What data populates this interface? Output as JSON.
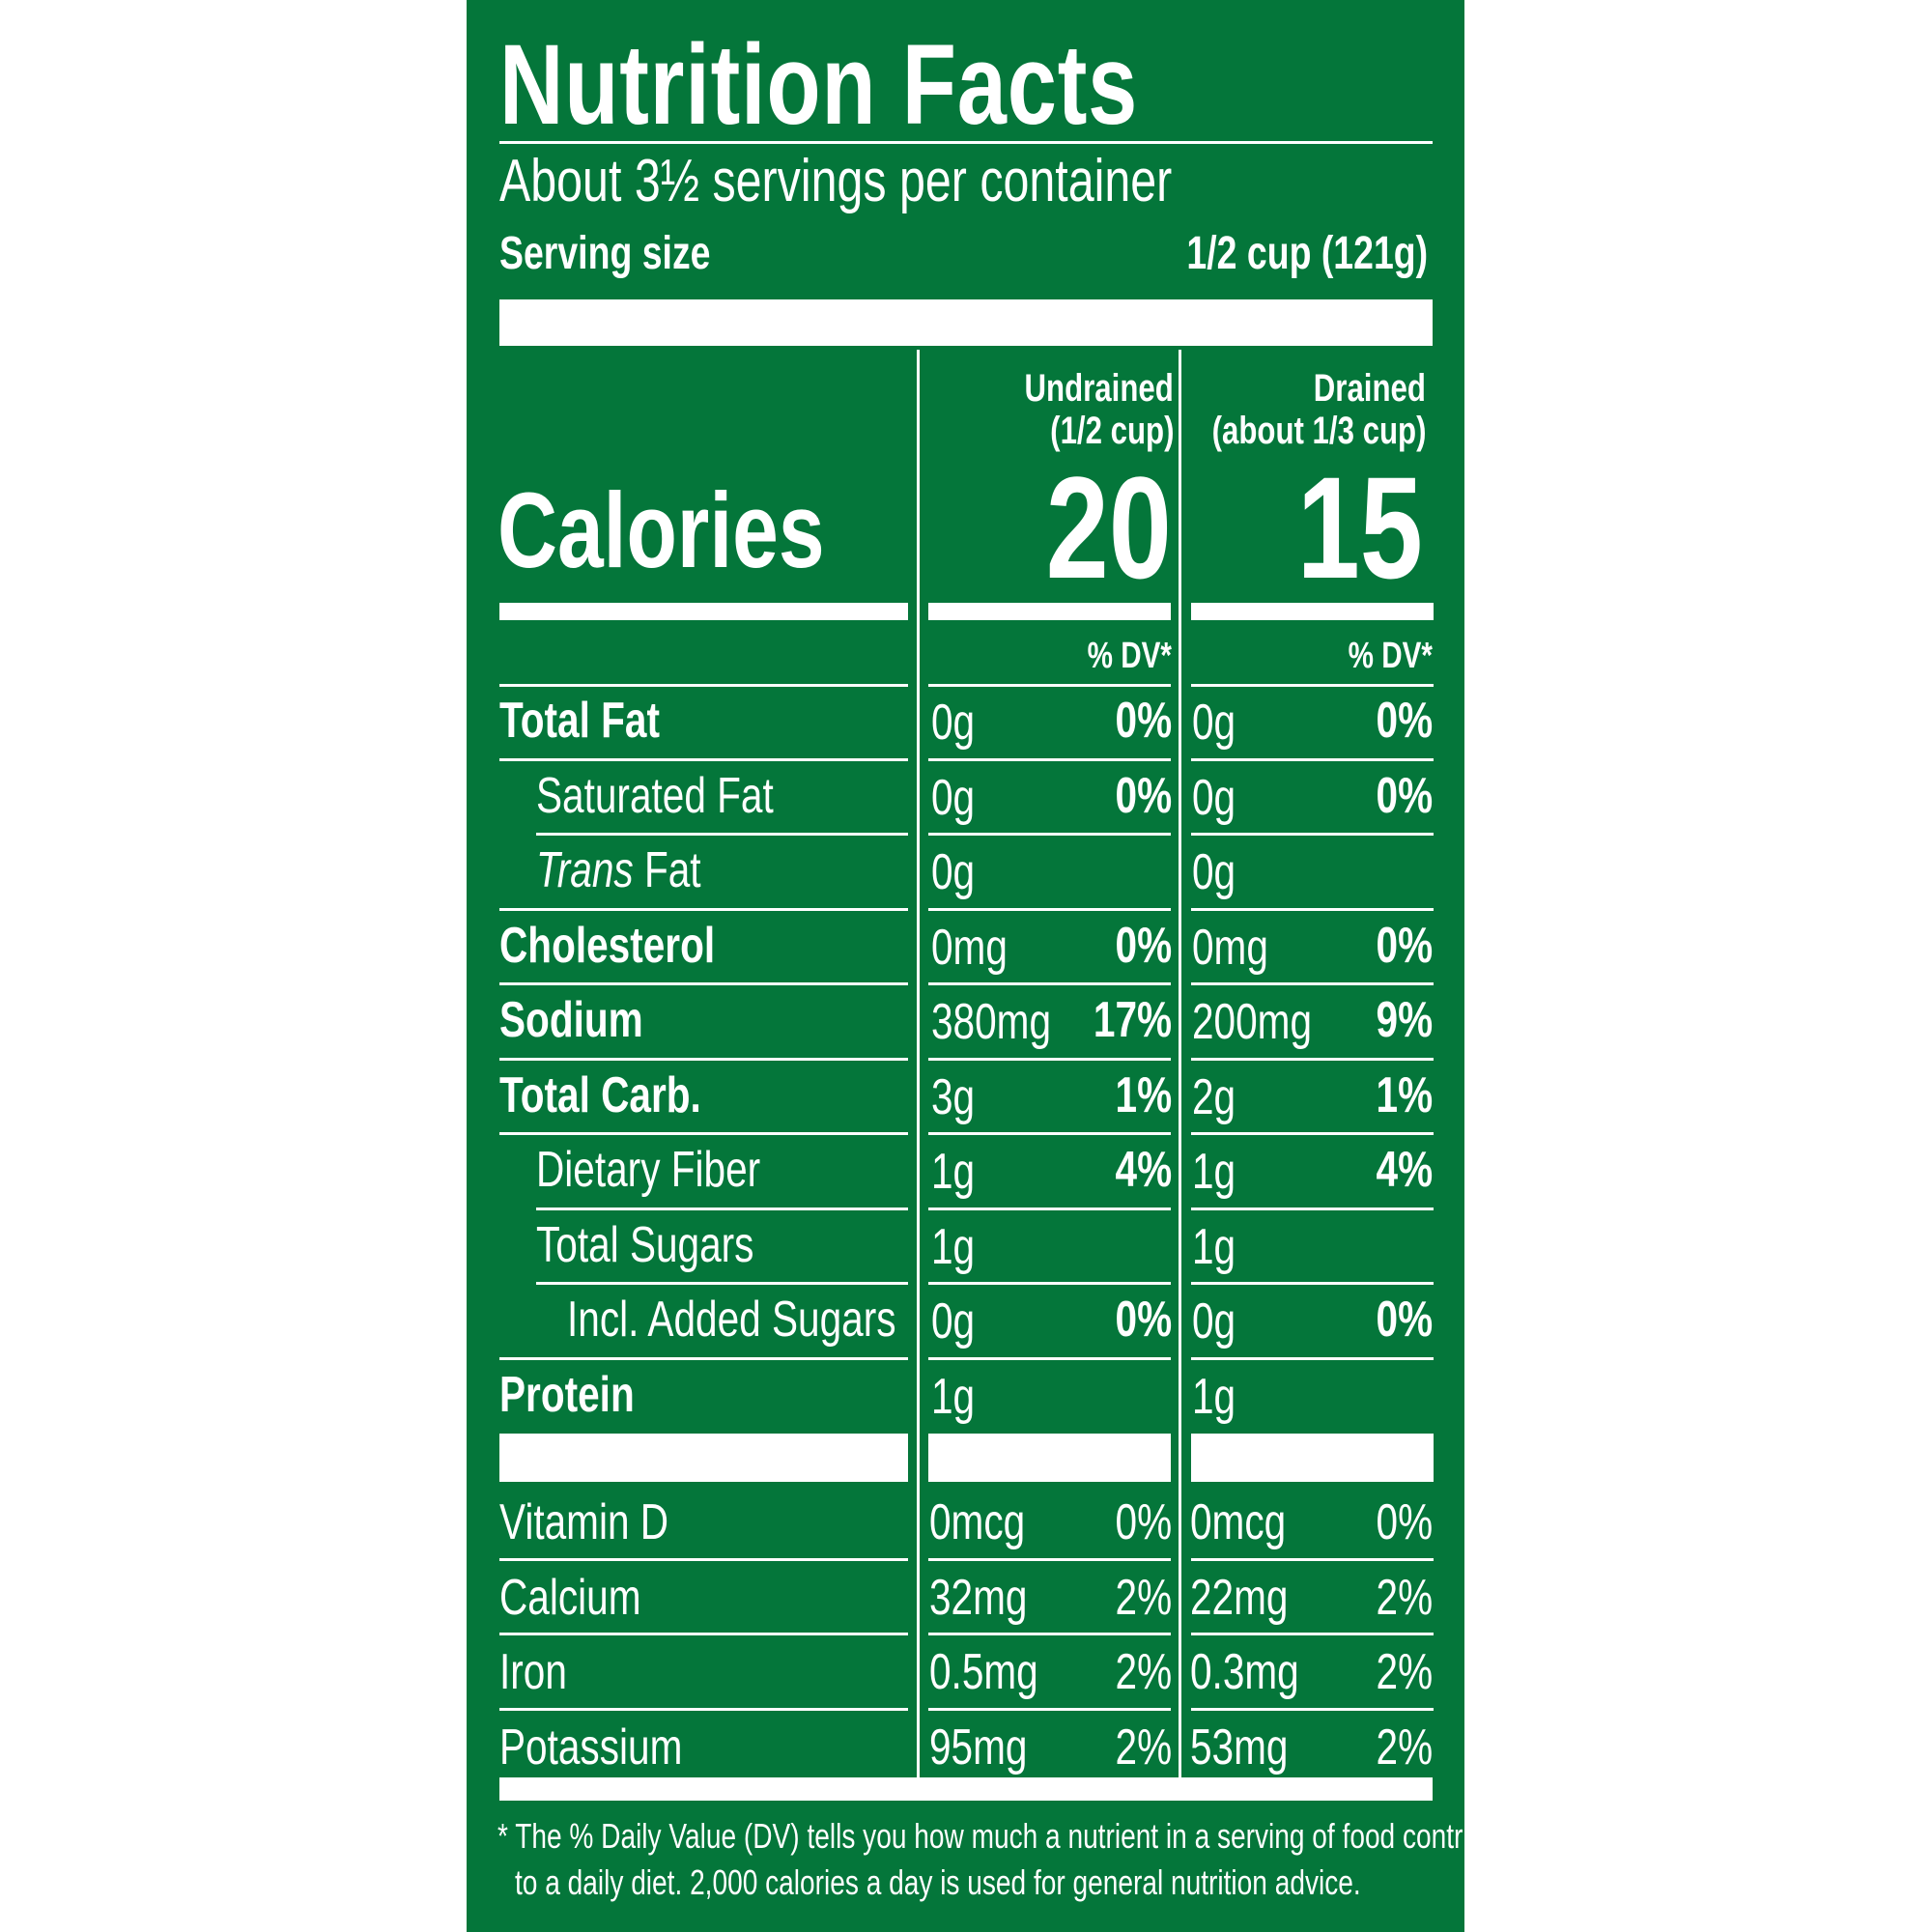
{
  "title": "Nutrition Facts",
  "servings_per_container": "About 3½ servings per container",
  "serving_size": {
    "label": "Serving size",
    "value": "1/2 cup (121g)"
  },
  "columns": [
    {
      "line1": "Undrained",
      "line2": "(1/2 cup)",
      "calories": "20",
      "dv_header": "% DV*"
    },
    {
      "line1": "Drained",
      "line2": "(about 1/3 cup)",
      "calories": "15",
      "dv_header": "% DV*"
    }
  ],
  "calories_label": "Calories",
  "nutrients": [
    {
      "label": "Total Fat",
      "bold": true,
      "indent": 0,
      "undrained": {
        "amount": "0g",
        "dv": "0%"
      },
      "drained": {
        "amount": "0g",
        "dv": "0%"
      }
    },
    {
      "label": "Saturated Fat",
      "bold": false,
      "indent": 1,
      "undrained": {
        "amount": "0g",
        "dv": "0%"
      },
      "drained": {
        "amount": "0g",
        "dv": "0%"
      }
    },
    {
      "label_italic": "Trans",
      "label": "Fat",
      "bold": false,
      "indent": 1,
      "undrained": {
        "amount": "0g",
        "dv": ""
      },
      "drained": {
        "amount": "0g",
        "dv": ""
      }
    },
    {
      "label": "Cholesterol",
      "bold": true,
      "indent": 0,
      "undrained": {
        "amount": "0mg",
        "dv": "0%"
      },
      "drained": {
        "amount": "0mg",
        "dv": "0%"
      }
    },
    {
      "label": "Sodium",
      "bold": true,
      "indent": 0,
      "undrained": {
        "amount": "380mg",
        "dv": "17%"
      },
      "drained": {
        "amount": "200mg",
        "dv": "9%"
      }
    },
    {
      "label": "Total Carb.",
      "bold": true,
      "indent": 0,
      "undrained": {
        "amount": "3g",
        "dv": "1%"
      },
      "drained": {
        "amount": "2g",
        "dv": "1%"
      }
    },
    {
      "label": "Dietary Fiber",
      "bold": false,
      "indent": 1,
      "undrained": {
        "amount": "1g",
        "dv": "4%"
      },
      "drained": {
        "amount": "1g",
        "dv": "4%"
      }
    },
    {
      "label": "Total Sugars",
      "bold": false,
      "indent": 1,
      "undrained": {
        "amount": "1g",
        "dv": ""
      },
      "drained": {
        "amount": "1g",
        "dv": ""
      }
    },
    {
      "label": "Incl. Added Sugars",
      "bold": false,
      "indent": 2,
      "undrained": {
        "amount": "0g",
        "dv": "0%"
      },
      "drained": {
        "amount": "0g",
        "dv": "0%"
      }
    },
    {
      "label": "Protein",
      "bold": true,
      "indent": 0,
      "undrained": {
        "amount": "1g",
        "dv": ""
      },
      "drained": {
        "amount": "1g",
        "dv": ""
      }
    }
  ],
  "vitamins": [
    {
      "label": "Vitamin D",
      "undrained": {
        "amount": "0mcg",
        "dv": "0%"
      },
      "drained": {
        "amount": "0mcg",
        "dv": "0%"
      }
    },
    {
      "label": "Calcium",
      "undrained": {
        "amount": "32mg",
        "dv": "2%"
      },
      "drained": {
        "amount": "22mg",
        "dv": "2%"
      }
    },
    {
      "label": "Iron",
      "undrained": {
        "amount": "0.5mg",
        "dv": "2%"
      },
      "drained": {
        "amount": "0.3mg",
        "dv": "2%"
      }
    },
    {
      "label": "Potassium",
      "undrained": {
        "amount": "95mg",
        "dv": "2%"
      },
      "drained": {
        "amount": "53mg",
        "dv": "2%"
      }
    }
  ],
  "footnote": {
    "line1": "* The % Daily Value (DV) tells you how much a nutrient in a serving of food contributes",
    "line2": "to a daily diet. 2,000 calories a day is used for general nutrition advice."
  },
  "colors": {
    "label_background": "#04763a",
    "text": "#ffffff",
    "page_background": "#ffffff"
  }
}
